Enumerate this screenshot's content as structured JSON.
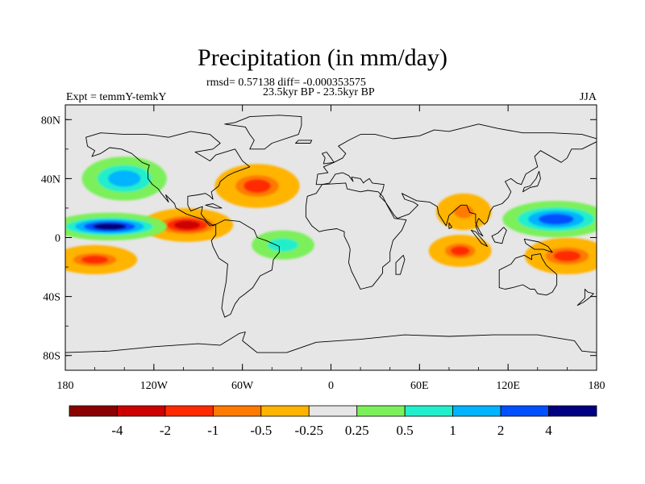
{
  "chart_data": {
    "type": "heatmap",
    "subtype": "filled-contour-map",
    "title": "Precipitation (in mm/day)",
    "stats_line": "rmsd= 0.57138  diff= -0.000353575",
    "period": "23.5kyr BP - 23.5kyr BP",
    "left_label": "Expt = temmY-temkY",
    "right_label": "JJA",
    "units": "mm/day",
    "rmsd": 0.57138,
    "diff": -0.000353575,
    "x_axis": {
      "range": [
        -180,
        180
      ],
      "ticks": [
        {
          "value": -180,
          "label": "180"
        },
        {
          "value": -120,
          "label": "120W"
        },
        {
          "value": -60,
          "label": "60W"
        },
        {
          "value": 0,
          "label": "0"
        },
        {
          "value": 60,
          "label": "60E"
        },
        {
          "value": 120,
          "label": "120E"
        },
        {
          "value": 180,
          "label": "180"
        }
      ]
    },
    "y_axis": {
      "range": [
        -90,
        90
      ],
      "ticks": [
        {
          "value": 80,
          "label": "80N"
        },
        {
          "value": 40,
          "label": "40N"
        },
        {
          "value": 0,
          "label": "0"
        },
        {
          "value": -40,
          "label": "40S"
        },
        {
          "value": -80,
          "label": "80S"
        }
      ]
    },
    "colorbar": {
      "bins": [
        {
          "color": "#8B0000",
          "range": "< -4"
        },
        {
          "color": "#CC0000",
          "range": "-4 to -2"
        },
        {
          "color": "#FF2A00",
          "range": "-2 to -1"
        },
        {
          "color": "#FF7A00",
          "range": "-1 to -0.5"
        },
        {
          "color": "#FFB400",
          "range": "-0.5 to -0.25"
        },
        {
          "color": "#E6E6E6",
          "range": "-0.25 to 0.25"
        },
        {
          "color": "#7CF05A",
          "range": "0.25 to 0.5"
        },
        {
          "color": "#22EECC",
          "range": "0.5 to 1"
        },
        {
          "color": "#00B4FF",
          "range": "1 to 2"
        },
        {
          "color": "#0050FF",
          "range": "2 to 4"
        },
        {
          "color": "#000080",
          "range": "> 4"
        }
      ],
      "boundaries": [
        {
          "value": -4,
          "label": "-4"
        },
        {
          "value": -2,
          "label": "-2"
        },
        {
          "value": -1,
          "label": "-1"
        },
        {
          "value": -0.5,
          "label": "-0.5"
        },
        {
          "value": -0.25,
          "label": "-0.25"
        },
        {
          "value": 0.25,
          "label": "0.25"
        },
        {
          "value": 0.5,
          "label": "0.5"
        },
        {
          "value": 1,
          "label": "1"
        },
        {
          "value": 2,
          "label": "2"
        },
        {
          "value": 4,
          "label": "4"
        }
      ]
    },
    "anomaly_features": [
      {
        "name": "east-pacific-itcz-deficit",
        "lon": [
          -120,
          -75
        ],
        "lat": [
          2,
          15
        ],
        "value": -4
      },
      {
        "name": "central-pacific-itcz-surplus",
        "lon": [
          -180,
          -120
        ],
        "lat": [
          3,
          12
        ],
        "value": 4
      },
      {
        "name": "south-pacific-deficit-band",
        "lon": [
          -180,
          -140
        ],
        "lat": [
          -20,
          -10
        ],
        "value": -2
      },
      {
        "name": "north-atlantic-deficit",
        "lon": [
          -70,
          -30
        ],
        "lat": [
          25,
          45
        ],
        "value": -2
      },
      {
        "name": "north-pacific-surplus",
        "lon": [
          -160,
          -120
        ],
        "lat": [
          30,
          50
        ],
        "value": 1
      },
      {
        "name": "indian-ocean-deficit",
        "lon": [
          75,
          100
        ],
        "lat": [
          -15,
          -3
        ],
        "value": -2
      },
      {
        "name": "west-pacific-surplus",
        "lon": [
          125,
          180
        ],
        "lat": [
          5,
          20
        ],
        "value": 2
      },
      {
        "name": "southwest-pacific-deficit",
        "lon": [
          140,
          180
        ],
        "lat": [
          -20,
          -5
        ],
        "value": -2
      },
      {
        "name": "bay-of-bengal-deficit",
        "lon": [
          80,
          100
        ],
        "lat": [
          10,
          25
        ],
        "value": -1
      },
      {
        "name": "tropical-atlantic-surplus",
        "lon": [
          -45,
          -20
        ],
        "lat": [
          -10,
          0
        ],
        "value": 0.5
      }
    ]
  }
}
